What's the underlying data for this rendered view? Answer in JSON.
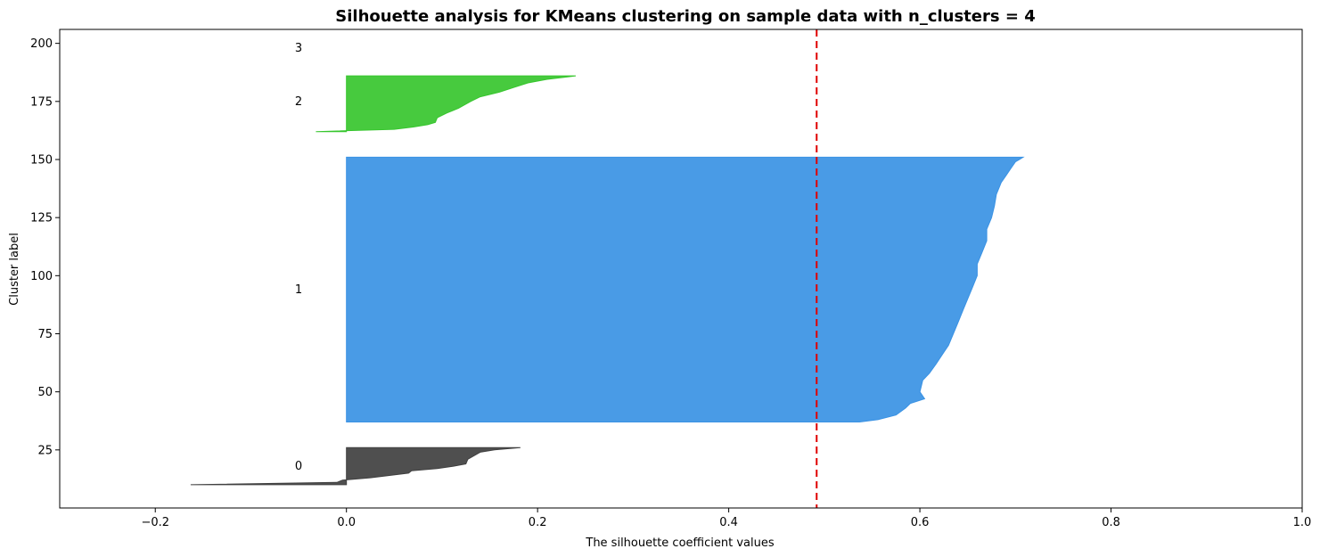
{
  "chart_data": {
    "type": "area",
    "title": "Silhouette analysis for KMeans clustering on sample data with n_clusters = 4",
    "xlabel": "The silhouette coefficient values",
    "ylabel": "Cluster label",
    "xlim": [
      -0.3,
      1.0
    ],
    "ylim": [
      0,
      206
    ],
    "xticks": [
      -0.2,
      0.0,
      0.2,
      0.4,
      0.6,
      0.8,
      1.0
    ],
    "xtick_labels": [
      "−0.2",
      "0.0",
      "0.2",
      "0.4",
      "0.6",
      "0.8",
      "1.0"
    ],
    "yticks": [
      25,
      50,
      75,
      100,
      125,
      150,
      175,
      200
    ],
    "ytick_labels": [
      "25",
      "50",
      "75",
      "100",
      "125",
      "150",
      "175",
      "200"
    ],
    "grid": false,
    "average_silhouette": 0.492,
    "average_line_color": "#e00000",
    "clusters": [
      {
        "label": "0",
        "label_y": 18,
        "color": "#404040",
        "profile": [
          [
            10,
            -0.163
          ],
          [
            11,
            -0.01
          ],
          [
            12,
            -0.004
          ],
          [
            13,
            0.025
          ],
          [
            15,
            0.065
          ],
          [
            16,
            0.068
          ],
          [
            17,
            0.095
          ],
          [
            18,
            0.112
          ],
          [
            19,
            0.125
          ],
          [
            21,
            0.127
          ],
          [
            24,
            0.14
          ],
          [
            25,
            0.155
          ],
          [
            26,
            0.182
          ]
        ]
      },
      {
        "label": "1",
        "label_y": 94,
        "color": "#3a92e4",
        "profile": [
          [
            37,
            0.537
          ],
          [
            38,
            0.556
          ],
          [
            40,
            0.575
          ],
          [
            43,
            0.585
          ],
          [
            45,
            0.59
          ],
          [
            47,
            0.605
          ],
          [
            50,
            0.6
          ],
          [
            55,
            0.603
          ],
          [
            58,
            0.61
          ],
          [
            62,
            0.617
          ],
          [
            67,
            0.625
          ],
          [
            70,
            0.63
          ],
          [
            75,
            0.635
          ],
          [
            80,
            0.64
          ],
          [
            85,
            0.645
          ],
          [
            90,
            0.65
          ],
          [
            95,
            0.655
          ],
          [
            100,
            0.66
          ],
          [
            105,
            0.66
          ],
          [
            110,
            0.665
          ],
          [
            115,
            0.67
          ],
          [
            120,
            0.67
          ],
          [
            125,
            0.675
          ],
          [
            130,
            0.678
          ],
          [
            135,
            0.68
          ],
          [
            140,
            0.685
          ],
          [
            143,
            0.69
          ],
          [
            146,
            0.695
          ],
          [
            149,
            0.7
          ],
          [
            151,
            0.708
          ]
        ]
      },
      {
        "label": "2",
        "label_y": 175,
        "color": "#37c62e",
        "profile": [
          [
            162,
            -0.032
          ],
          [
            163,
            0.05
          ],
          [
            164,
            0.07
          ],
          [
            165,
            0.085
          ],
          [
            166,
            0.093
          ],
          [
            168,
            0.095
          ],
          [
            170,
            0.105
          ],
          [
            172,
            0.117
          ],
          [
            175,
            0.13
          ],
          [
            177,
            0.14
          ],
          [
            179,
            0.16
          ],
          [
            181,
            0.175
          ],
          [
            183,
            0.19
          ],
          [
            184.5,
            0.21
          ],
          [
            186,
            0.24
          ]
        ]
      },
      {
        "label": "3",
        "label_y": 198,
        "color": "#000000",
        "profile": []
      }
    ]
  }
}
